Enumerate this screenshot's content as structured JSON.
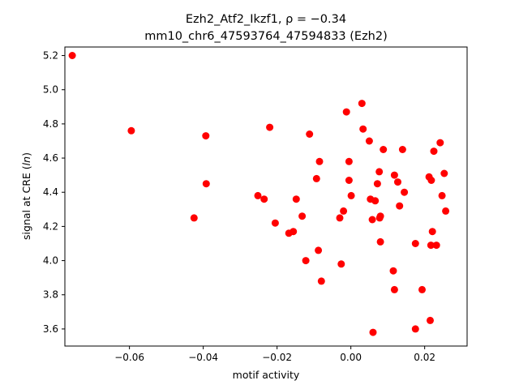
{
  "chart_data": {
    "type": "scatter",
    "title_line1": "Ezh2_Atf2_Ikzf1, ρ = −0.34",
    "title_line2": "mm10_chr6_47593764_47594833 (Ezh2)",
    "xlabel": "motif activity",
    "ylabel": "signal at CRE (ln)",
    "xlim": [
      -0.0775,
      0.0315
    ],
    "ylim": [
      3.5,
      5.25
    ],
    "x_ticks": [
      -0.06,
      -0.04,
      -0.02,
      0.0,
      0.02
    ],
    "x_tick_labels": [
      "−0.06",
      "−0.04",
      "−0.02",
      "0.00",
      "0.02"
    ],
    "y_ticks": [
      3.6,
      3.8,
      4.0,
      4.2,
      4.4,
      4.6,
      4.8,
      5.0,
      5.2
    ],
    "y_tick_labels": [
      "3.6",
      "3.8",
      "4.0",
      "4.2",
      "4.4",
      "4.6",
      "4.8",
      "5.0",
      "5.2"
    ],
    "grid": false,
    "marker_color": "#ff0000",
    "points": [
      {
        "x": -0.0755,
        "y": 5.2
      },
      {
        "x": -0.0595,
        "y": 4.76
      },
      {
        "x": -0.0393,
        "y": 4.73
      },
      {
        "x": -0.0392,
        "y": 4.45
      },
      {
        "x": -0.0425,
        "y": 4.25
      },
      {
        "x": -0.0252,
        "y": 4.38
      },
      {
        "x": -0.0235,
        "y": 4.36
      },
      {
        "x": -0.022,
        "y": 4.78
      },
      {
        "x": -0.0205,
        "y": 4.22
      },
      {
        "x": -0.0168,
        "y": 4.16
      },
      {
        "x": -0.0156,
        "y": 4.17
      },
      {
        "x": -0.0148,
        "y": 4.36
      },
      {
        "x": -0.0132,
        "y": 4.26
      },
      {
        "x": -0.0122,
        "y": 4.0
      },
      {
        "x": -0.0112,
        "y": 4.74
      },
      {
        "x": -0.0093,
        "y": 4.48
      },
      {
        "x": -0.0088,
        "y": 4.06
      },
      {
        "x": -0.0085,
        "y": 4.58
      },
      {
        "x": -0.008,
        "y": 3.88
      },
      {
        "x": -0.003,
        "y": 4.25
      },
      {
        "x": -0.0026,
        "y": 3.98
      },
      {
        "x": -0.002,
        "y": 4.29
      },
      {
        "x": -0.0012,
        "y": 4.87
      },
      {
        "x": -0.0005,
        "y": 4.58
      },
      {
        "x": -0.0005,
        "y": 4.47
      },
      {
        "x": 0.0001,
        "y": 4.38
      },
      {
        "x": 0.003,
        "y": 4.92
      },
      {
        "x": 0.0033,
        "y": 4.77
      },
      {
        "x": 0.005,
        "y": 4.7
      },
      {
        "x": 0.0053,
        "y": 4.36
      },
      {
        "x": 0.0058,
        "y": 4.24
      },
      {
        "x": 0.006,
        "y": 3.58
      },
      {
        "x": 0.0066,
        "y": 4.35
      },
      {
        "x": 0.0072,
        "y": 4.45
      },
      {
        "x": 0.0077,
        "y": 4.52
      },
      {
        "x": 0.0078,
        "y": 4.25
      },
      {
        "x": 0.008,
        "y": 4.26
      },
      {
        "x": 0.008,
        "y": 4.11
      },
      {
        "x": 0.0088,
        "y": 4.65
      },
      {
        "x": 0.0115,
        "y": 3.94
      },
      {
        "x": 0.0118,
        "y": 4.5
      },
      {
        "x": 0.0118,
        "y": 3.83
      },
      {
        "x": 0.0127,
        "y": 4.46
      },
      {
        "x": 0.0132,
        "y": 4.32
      },
      {
        "x": 0.014,
        "y": 4.65
      },
      {
        "x": 0.0145,
        "y": 4.4
      },
      {
        "x": 0.0175,
        "y": 4.1
      },
      {
        "x": 0.0175,
        "y": 3.6
      },
      {
        "x": 0.0193,
        "y": 3.83
      },
      {
        "x": 0.0212,
        "y": 4.49
      },
      {
        "x": 0.0215,
        "y": 3.65
      },
      {
        "x": 0.0217,
        "y": 4.09
      },
      {
        "x": 0.0218,
        "y": 4.47
      },
      {
        "x": 0.0221,
        "y": 4.17
      },
      {
        "x": 0.0225,
        "y": 4.64
      },
      {
        "x": 0.0232,
        "y": 4.09
      },
      {
        "x": 0.0242,
        "y": 4.69
      },
      {
        "x": 0.0247,
        "y": 4.38
      },
      {
        "x": 0.0253,
        "y": 4.51
      },
      {
        "x": 0.0257,
        "y": 4.29
      }
    ]
  }
}
